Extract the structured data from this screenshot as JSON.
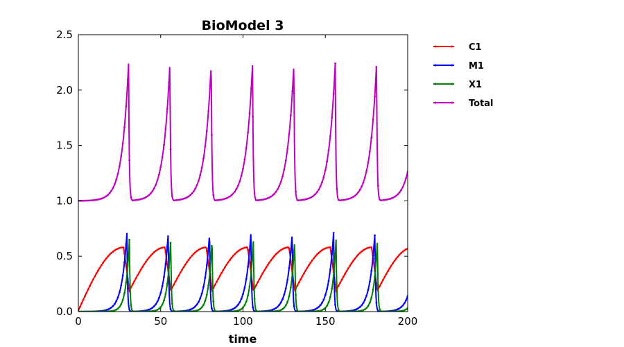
{
  "chart_data": {
    "type": "line",
    "title": "BioModel 3",
    "xlabel": "time",
    "ylabel": "",
    "xlim": [
      0,
      200
    ],
    "ylim": [
      0,
      2.5
    ],
    "xticks": [
      "0",
      "50",
      "100",
      "150",
      "200"
    ],
    "yticks": [
      "0.0",
      "0.5",
      "1.0",
      "1.5",
      "2.0",
      "2.5"
    ],
    "grid": false,
    "legend_position": "outside-right",
    "period": 25.1,
    "series": [
      {
        "name": "C1",
        "color": "#ff0000",
        "shape": "sawtooth",
        "start": 0.01,
        "peak": 0.58,
        "peak_phase": 27.5,
        "reset": 0.19,
        "peaks_at": [
          27.5,
          52.6,
          77.7,
          102.8,
          127.9,
          153.0,
          178.1
        ]
      },
      {
        "name": "M1",
        "color": "#0000ff",
        "shape": "spike",
        "baseline": 0.0,
        "peak": 0.71,
        "peaks_at": [
          29.5,
          54.6,
          79.7,
          104.8,
          129.9,
          155.0,
          180.1
        ]
      },
      {
        "name": "X1",
        "color": "#008000",
        "shape": "spike",
        "baseline": 0.0,
        "peak": 0.65,
        "peaks_at": [
          31.0,
          56.1,
          81.2,
          106.3,
          131.4,
          156.5,
          181.6
        ]
      },
      {
        "name": "Total",
        "color": "#bf00bf",
        "shape": "spike",
        "baseline": 1.0,
        "peak": 2.24,
        "peaks_at": [
          30.5,
          55.6,
          80.7,
          105.8,
          130.9,
          156.0,
          181.1
        ]
      }
    ]
  }
}
